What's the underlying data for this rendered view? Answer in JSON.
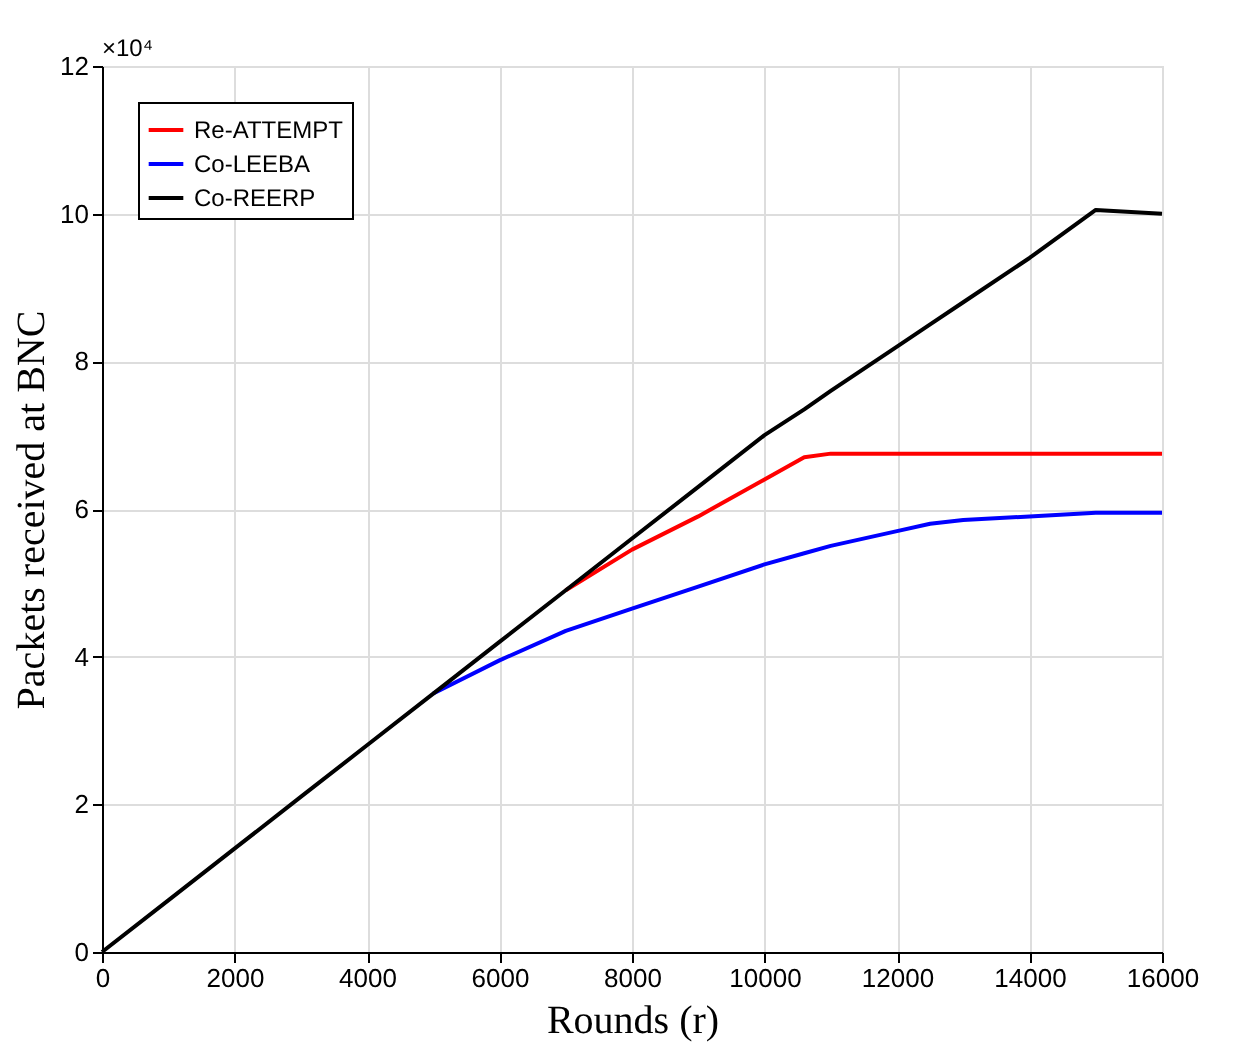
{
  "chart_data": {
    "type": "line",
    "xlabel": "Rounds (r)",
    "ylabel": "Packets received at BNC",
    "annotations": [
      "×10⁴"
    ],
    "x": [
      0,
      1000,
      2000,
      3000,
      4000,
      5000,
      6000,
      7000,
      8000,
      9000,
      10000,
      10600,
      11000,
      12000,
      12500,
      13000,
      14000,
      15000,
      16000
    ],
    "series": [
      {
        "name": "Re-ATTEMPT",
        "color": "#ff0000",
        "values": [
          null,
          null,
          null,
          null,
          null,
          null,
          null,
          4.9,
          5.45,
          5.9,
          6.4,
          6.7,
          6.75,
          6.75,
          6.75,
          6.75,
          6.75,
          6.75,
          6.75
        ]
      },
      {
        "name": "Co-LEEBA",
        "color": "#0000ff",
        "values": [
          null,
          null,
          null,
          null,
          null,
          3.5,
          3.95,
          4.35,
          4.65,
          4.95,
          5.25,
          5.4,
          5.5,
          5.7,
          5.8,
          5.85,
          5.9,
          5.95,
          5.95
        ]
      },
      {
        "name": "Co-REERP",
        "color": "#000000",
        "values": [
          0,
          0.7,
          1.4,
          2.1,
          2.8,
          3.5,
          4.2,
          4.9,
          5.6,
          6.3,
          7.0,
          7.35,
          7.6,
          8.2,
          8.5,
          8.8,
          9.4,
          10.05,
          10.0
        ]
      }
    ],
    "xlim": [
      0,
      16000
    ],
    "xticks": [
      0,
      2000,
      4000,
      6000,
      8000,
      10000,
      12000,
      14000,
      16000
    ],
    "ylim": [
      0,
      12
    ],
    "yticks": [
      0,
      2,
      4,
      6,
      8,
      10,
      12
    ],
    "grid": true,
    "legend": "top left",
    "line_style": "solid",
    "marker": "none"
  }
}
